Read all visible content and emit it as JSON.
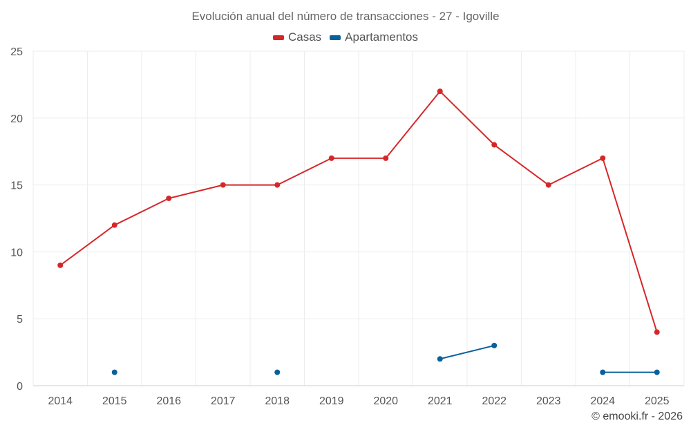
{
  "chart_data": {
    "type": "line",
    "title": "Evolución anual del número de transacciones - 27 - Igoville",
    "xlabel": "",
    "ylabel": "",
    "categories": [
      "2014",
      "2015",
      "2016",
      "2017",
      "2018",
      "2019",
      "2020",
      "2021",
      "2022",
      "2023",
      "2024",
      "2025"
    ],
    "ylim": [
      0,
      25
    ],
    "yticks": [
      0,
      5,
      10,
      15,
      20,
      25
    ],
    "grid": true,
    "legend_position": "top-center",
    "series": [
      {
        "name": "Casas",
        "color": "#d62728",
        "values": [
          9,
          12,
          14,
          15,
          15,
          17,
          17,
          22,
          18,
          15,
          17,
          4
        ]
      },
      {
        "name": "Apartamentos",
        "color": "#08619b",
        "values": [
          null,
          1,
          null,
          null,
          1,
          null,
          null,
          2,
          3,
          null,
          1,
          1
        ]
      }
    ]
  },
  "credit": "© emooki.fr - 2026"
}
